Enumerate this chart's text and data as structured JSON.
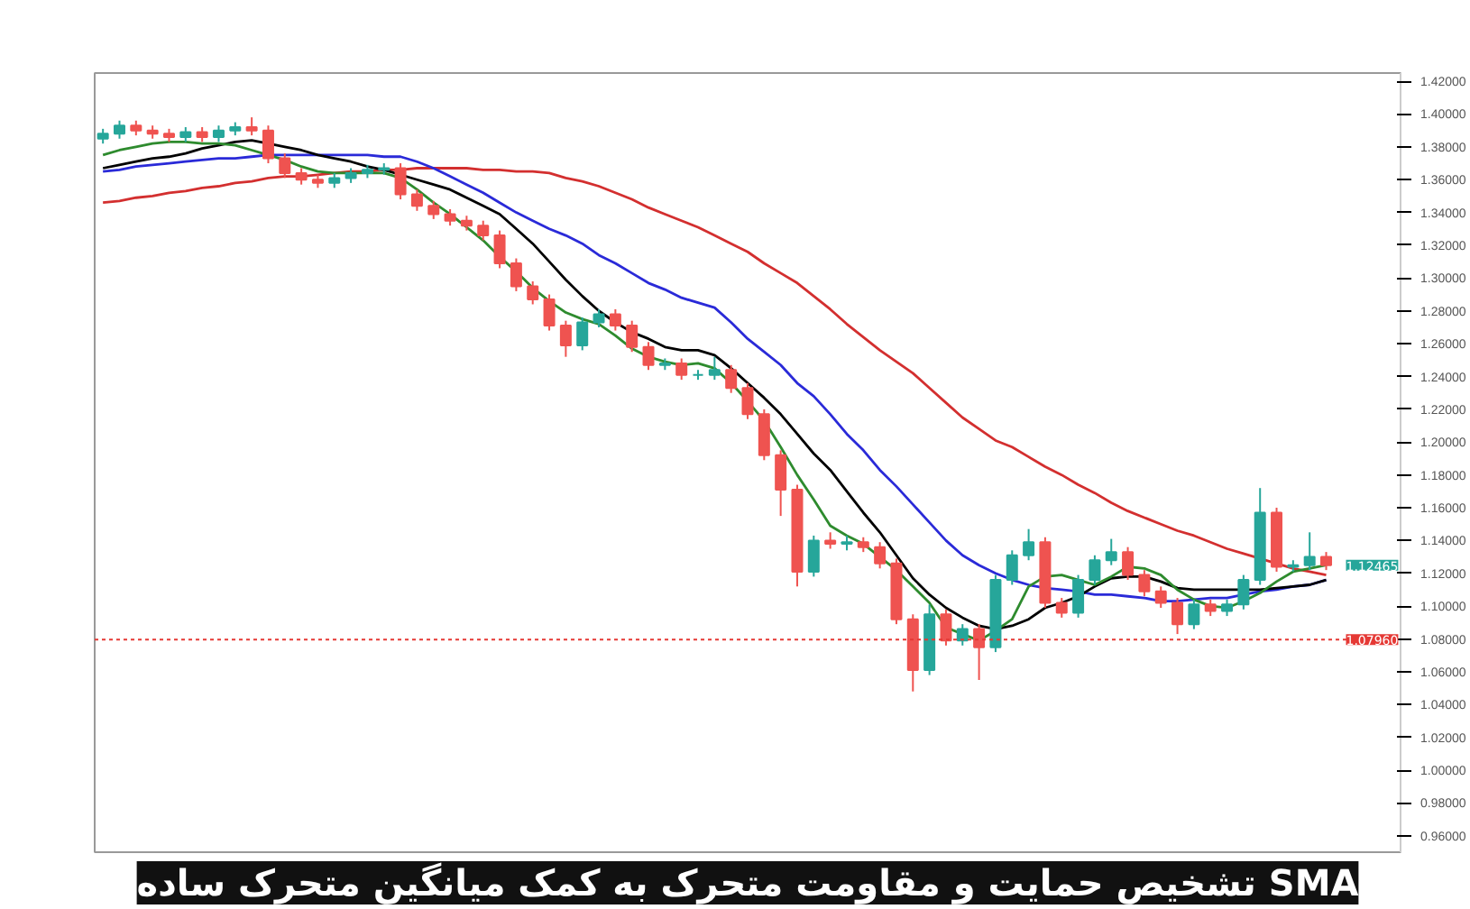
{
  "chart_data": {
    "type": "candlestick",
    "title": "تشخیص حمایت و مقاومت متحرک به کمک میانگین متحرک ساده SMA",
    "categories": [
      null,
      null,
      null,
      null,
      null,
      null,
      null,
      null,
      null,
      null,
      null,
      null,
      null,
      null,
      null,
      null,
      null,
      null,
      null,
      null,
      null,
      null,
      null,
      null,
      null,
      null,
      null,
      null,
      null,
      null,
      null,
      null,
      null,
      null,
      null,
      null,
      null,
      null,
      null,
      null,
      null,
      null,
      null,
      null,
      null,
      null,
      null,
      null,
      null,
      null,
      null,
      null,
      null,
      null,
      null,
      null,
      null,
      null,
      null,
      null,
      null,
      null,
      null,
      null,
      null,
      null,
      null,
      null,
      null,
      null,
      null,
      null,
      null,
      null,
      null
    ],
    "ohlc": [
      [
        1.385,
        1.391,
        1.382,
        1.388
      ],
      [
        1.388,
        1.396,
        1.385,
        1.393
      ],
      [
        1.393,
        1.396,
        1.387,
        1.39
      ],
      [
        1.39,
        1.393,
        1.385,
        1.388
      ],
      [
        1.388,
        1.391,
        1.383,
        1.386
      ],
      [
        1.386,
        1.392,
        1.383,
        1.389
      ],
      [
        1.389,
        1.392,
        1.383,
        1.386
      ],
      [
        1.386,
        1.393,
        1.383,
        1.39
      ],
      [
        1.39,
        1.395,
        1.387,
        1.392
      ],
      [
        1.392,
        1.398,
        1.387,
        1.39
      ],
      [
        1.39,
        1.393,
        1.37,
        1.373
      ],
      [
        1.373,
        1.376,
        1.361,
        1.364
      ],
      [
        1.364,
        1.367,
        1.357,
        1.36
      ],
      [
        1.36,
        1.363,
        1.355,
        1.358
      ],
      [
        1.358,
        1.364,
        1.355,
        1.361
      ],
      [
        1.361,
        1.367,
        1.358,
        1.364
      ],
      [
        1.364,
        1.369,
        1.361,
        1.366
      ],
      [
        1.366,
        1.37,
        1.363,
        1.367
      ],
      [
        1.367,
        1.37,
        1.348,
        1.351
      ],
      [
        1.351,
        1.354,
        1.341,
        1.344
      ],
      [
        1.344,
        1.347,
        1.336,
        1.339
      ],
      [
        1.339,
        1.342,
        1.332,
        1.335
      ],
      [
        1.335,
        1.338,
        1.329,
        1.332
      ],
      [
        1.332,
        1.335,
        1.323,
        1.326
      ],
      [
        1.326,
        1.329,
        1.306,
        1.309
      ],
      [
        1.309,
        1.312,
        1.292,
        1.295
      ],
      [
        1.295,
        1.298,
        1.284,
        1.287
      ],
      [
        1.287,
        1.29,
        1.268,
        1.271
      ],
      [
        1.271,
        1.274,
        1.252,
        1.259
      ],
      [
        1.259,
        1.276,
        1.256,
        1.273
      ],
      [
        1.273,
        1.281,
        1.27,
        1.278
      ],
      [
        1.278,
        1.281,
        1.268,
        1.271
      ],
      [
        1.271,
        1.274,
        1.255,
        1.258
      ],
      [
        1.258,
        1.261,
        1.244,
        1.247
      ],
      [
        1.247,
        1.251,
        1.244,
        1.248
      ],
      [
        1.248,
        1.251,
        1.238,
        1.241
      ],
      [
        1.241,
        1.244,
        1.238,
        1.241
      ],
      [
        1.241,
        1.252,
        1.238,
        1.244
      ],
      [
        1.244,
        1.247,
        1.23,
        1.233
      ],
      [
        1.233,
        1.236,
        1.214,
        1.217
      ],
      [
        1.217,
        1.22,
        1.189,
        1.192
      ],
      [
        1.192,
        1.195,
        1.155,
        1.171
      ],
      [
        1.171,
        1.174,
        1.112,
        1.121
      ],
      [
        1.121,
        1.143,
        1.118,
        1.14
      ],
      [
        1.14,
        1.145,
        1.135,
        1.138
      ],
      [
        1.138,
        1.143,
        1.134,
        1.139
      ],
      [
        1.139,
        1.142,
        1.133,
        1.136
      ],
      [
        1.136,
        1.139,
        1.123,
        1.126
      ],
      [
        1.126,
        1.129,
        1.089,
        1.092
      ],
      [
        1.092,
        1.095,
        1.048,
        1.061
      ],
      [
        1.061,
        1.101,
        1.058,
        1.095
      ],
      [
        1.095,
        1.098,
        1.076,
        1.079
      ],
      [
        1.079,
        1.089,
        1.076,
        1.086
      ],
      [
        1.086,
        1.089,
        1.055,
        1.075
      ],
      [
        1.075,
        1.119,
        1.072,
        1.116
      ],
      [
        1.116,
        1.134,
        1.113,
        1.131
      ],
      [
        1.131,
        1.147,
        1.128,
        1.139
      ],
      [
        1.139,
        1.142,
        1.099,
        1.102
      ],
      [
        1.102,
        1.105,
        1.093,
        1.096
      ],
      [
        1.096,
        1.119,
        1.093,
        1.116
      ],
      [
        1.116,
        1.131,
        1.113,
        1.128
      ],
      [
        1.128,
        1.141,
        1.125,
        1.133
      ],
      [
        1.133,
        1.136,
        1.116,
        1.119
      ],
      [
        1.119,
        1.122,
        1.106,
        1.109
      ],
      [
        1.109,
        1.112,
        1.099,
        1.102
      ],
      [
        1.102,
        1.105,
        1.083,
        1.089
      ],
      [
        1.089,
        1.104,
        1.086,
        1.101
      ],
      [
        1.101,
        1.104,
        1.094,
        1.097
      ],
      [
        1.097,
        1.104,
        1.094,
        1.101
      ],
      [
        1.101,
        1.119,
        1.098,
        1.116
      ],
      [
        1.116,
        1.172,
        1.113,
        1.157
      ],
      [
        1.157,
        1.16,
        1.121,
        1.124
      ],
      [
        1.124,
        1.128,
        1.121,
        1.125
      ],
      [
        1.125,
        1.145,
        1.122,
        1.13
      ],
      [
        1.13,
        1.133,
        1.122,
        1.125
      ]
    ],
    "series": [
      {
        "type": "line",
        "color": "#d32f2f",
        "values": [
          1.346,
          1.347,
          1.349,
          1.35,
          1.352,
          1.353,
          1.355,
          1.356,
          1.358,
          1.359,
          1.361,
          1.362,
          1.362,
          1.363,
          1.364,
          1.365,
          1.365,
          1.366,
          1.366,
          1.367,
          1.367,
          1.367,
          1.367,
          1.366,
          1.366,
          1.365,
          1.365,
          1.364,
          1.361,
          1.359,
          1.356,
          1.352,
          1.348,
          1.343,
          1.339,
          1.335,
          1.331,
          1.326,
          1.321,
          1.316,
          1.309,
          1.303,
          1.297,
          1.289,
          1.281,
          1.272,
          1.264,
          1.256,
          1.249,
          1.242,
          1.233,
          1.224,
          1.215,
          1.208,
          1.201,
          1.197,
          1.191,
          1.185,
          1.18,
          1.174,
          1.169,
          1.163,
          1.158,
          1.154,
          1.15,
          1.146,
          1.143,
          1.139,
          1.135,
          1.132,
          1.129,
          1.126,
          1.123,
          1.121,
          1.119
        ]
      },
      {
        "type": "line",
        "color": "#2a2ad8",
        "values": [
          1.365,
          1.366,
          1.368,
          1.369,
          1.37,
          1.371,
          1.372,
          1.373,
          1.373,
          1.374,
          1.375,
          1.375,
          1.375,
          1.375,
          1.375,
          1.375,
          1.375,
          1.374,
          1.374,
          1.371,
          1.367,
          1.362,
          1.357,
          1.352,
          1.346,
          1.34,
          1.335,
          1.33,
          1.326,
          1.321,
          1.314,
          1.309,
          1.303,
          1.297,
          1.293,
          1.288,
          1.285,
          1.282,
          1.273,
          1.263,
          1.255,
          1.247,
          1.236,
          1.228,
          1.217,
          1.205,
          1.195,
          1.183,
          1.173,
          1.162,
          1.151,
          1.14,
          1.131,
          1.125,
          1.12,
          1.116,
          1.113,
          1.111,
          1.11,
          1.109,
          1.107,
          1.107,
          1.106,
          1.105,
          1.103,
          1.103,
          1.104,
          1.105,
          1.105,
          1.107,
          1.109,
          1.11,
          1.112,
          1.113,
          1.116
        ]
      },
      {
        "type": "line",
        "color": "#000000",
        "values": [
          1.367,
          1.369,
          1.371,
          1.373,
          1.374,
          1.376,
          1.379,
          1.381,
          1.383,
          1.384,
          1.382,
          1.38,
          1.378,
          1.375,
          1.373,
          1.371,
          1.368,
          1.366,
          1.363,
          1.36,
          1.357,
          1.354,
          1.349,
          1.344,
          1.339,
          1.33,
          1.321,
          1.31,
          1.299,
          1.289,
          1.28,
          1.273,
          1.267,
          1.263,
          1.258,
          1.256,
          1.256,
          1.253,
          1.245,
          1.236,
          1.227,
          1.217,
          1.205,
          1.193,
          1.183,
          1.17,
          1.157,
          1.145,
          1.131,
          1.117,
          1.107,
          1.099,
          1.093,
          1.088,
          1.086,
          1.088,
          1.092,
          1.099,
          1.102,
          1.106,
          1.112,
          1.117,
          1.118,
          1.118,
          1.115,
          1.111,
          1.11,
          1.11,
          1.11,
          1.11,
          1.11,
          1.111,
          1.112,
          1.113,
          1.116
        ]
      },
      {
        "type": "line",
        "color": "#2e8b2e",
        "values": [
          1.375,
          1.378,
          1.38,
          1.382,
          1.383,
          1.383,
          1.382,
          1.382,
          1.381,
          1.378,
          1.375,
          1.372,
          1.368,
          1.365,
          1.364,
          1.364,
          1.364,
          1.364,
          1.361,
          1.354,
          1.346,
          1.339,
          1.331,
          1.323,
          1.313,
          1.304,
          1.294,
          1.286,
          1.279,
          1.275,
          1.272,
          1.265,
          1.257,
          1.252,
          1.249,
          1.247,
          1.248,
          1.245,
          1.236,
          1.225,
          1.213,
          1.197,
          1.18,
          1.165,
          1.149,
          1.143,
          1.138,
          1.13,
          1.122,
          1.112,
          1.102,
          1.087,
          1.083,
          1.079,
          1.085,
          1.092,
          1.112,
          1.118,
          1.119,
          1.116,
          1.113,
          1.118,
          1.124,
          1.123,
          1.119,
          1.11,
          1.104,
          1.1,
          1.099,
          1.103,
          1.108,
          1.115,
          1.121,
          1.123,
          1.125
        ]
      }
    ],
    "ylim": [
      0.95,
      1.425
    ],
    "yticks": [
      {
        "value": 0.96,
        "label": "0.96000"
      },
      {
        "value": 0.98,
        "label": "0.98000"
      },
      {
        "value": 1.0,
        "label": "1.00000"
      },
      {
        "value": 1.02,
        "label": "1.02000"
      },
      {
        "value": 1.04,
        "label": "1.04000"
      },
      {
        "value": 1.06,
        "label": "1.06000"
      },
      {
        "value": 1.08,
        "label": "1.08000"
      },
      {
        "value": 1.1,
        "label": "1.10000"
      },
      {
        "value": 1.12,
        "label": "1.12000"
      },
      {
        "value": 1.14,
        "label": "1.14000"
      },
      {
        "value": 1.16,
        "label": "1.16000"
      },
      {
        "value": 1.18,
        "label": "1.18000"
      },
      {
        "value": 1.2,
        "label": "1.20000"
      },
      {
        "value": 1.22,
        "label": "1.22000"
      },
      {
        "value": 1.24,
        "label": "1.24000"
      },
      {
        "value": 1.26,
        "label": "1.26000"
      },
      {
        "value": 1.28,
        "label": "1.28000"
      },
      {
        "value": 1.3,
        "label": "1.30000"
      },
      {
        "value": 1.32,
        "label": "1.32000"
      },
      {
        "value": 1.34,
        "label": "1.34000"
      },
      {
        "value": 1.36,
        "label": "1.36000"
      },
      {
        "value": 1.38,
        "label": "1.38000"
      },
      {
        "value": 1.4,
        "label": "1.40000"
      },
      {
        "value": 1.42,
        "label": "1.42000"
      }
    ],
    "ref_lines": [
      {
        "axis": "y",
        "value": 1.0796,
        "label": "1.07960",
        "color": "#e53935",
        "line_style": "dotted"
      }
    ],
    "annotations": [
      "1.12465"
    ],
    "tick_labels": "y",
    "grid": false
  }
}
